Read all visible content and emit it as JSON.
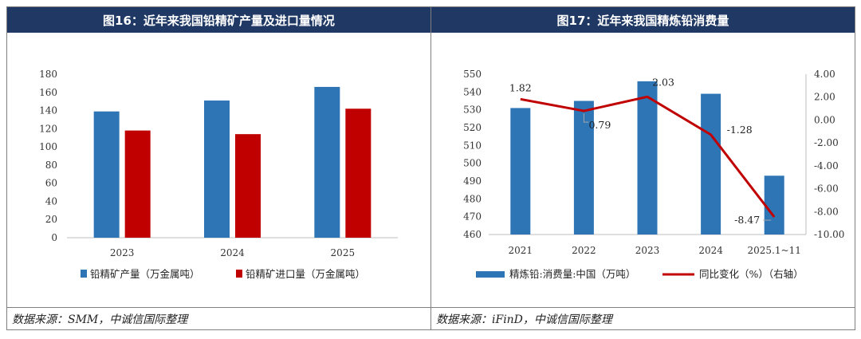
{
  "left_panel": {
    "title": "图16：近年来我国铅精矿产量及进口量情况",
    "source": "数据来源：SMM，中诚信国际整理"
  },
  "right_panel": {
    "title": "图17：近年来我国精炼铅消费量",
    "source": "数据来源：iFinD，中诚信国际整理"
  },
  "colors": {
    "blue": "#2e75b6",
    "red": "#c00000",
    "title_bg": "#1f3864"
  },
  "chart_data": [
    {
      "type": "bar",
      "categories": [
        "2023",
        "2024",
        "2025"
      ],
      "series": [
        {
          "name": "铅精矿产量（万金属吨）",
          "values": [
            139,
            151,
            166
          ]
        },
        {
          "name": "铅精矿进口量（万金属吨）",
          "values": [
            118,
            114,
            142
          ]
        }
      ],
      "ylim": [
        0,
        180
      ],
      "yticks": [
        "0",
        "20",
        "40",
        "60",
        "80",
        "100",
        "120",
        "140",
        "160",
        "180"
      ],
      "grid": false,
      "legend": "bottom"
    },
    {
      "type": "bar+line",
      "categories": [
        "2021",
        "2022",
        "2023",
        "2024",
        "2025.1~11"
      ],
      "bar_series": {
        "name": "精炼铅:消费量:中国（万吨）",
        "values": [
          531,
          535,
          546,
          539,
          493
        ]
      },
      "line_series": {
        "name": "同比变化（%）（右轴）",
        "values": [
          1.82,
          0.79,
          2.03,
          -1.28,
          -8.47
        ],
        "labels": [
          "1.82",
          "0.79",
          "2.03",
          "-1.28",
          "-8.47"
        ]
      },
      "ylim": [
        460,
        550
      ],
      "yticks": [
        "460",
        "470",
        "480",
        "490",
        "500",
        "510",
        "520",
        "530",
        "540",
        "550"
      ],
      "y2lim": [
        -10,
        4
      ],
      "y2ticks": [
        "-10.00",
        "-8.00",
        "-6.00",
        "-4.00",
        "-2.00",
        "0.00",
        "2.00",
        "4.00"
      ],
      "grid": false,
      "legend": "bottom"
    }
  ]
}
